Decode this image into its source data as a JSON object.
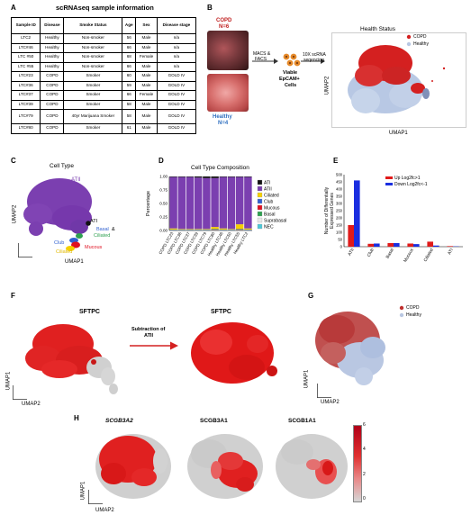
{
  "panels": {
    "a": "A",
    "b": "B",
    "c": "C",
    "d": "D",
    "e": "E",
    "f": "F",
    "g": "G",
    "h": "H"
  },
  "table_a": {
    "title": "scRNAseq sample information",
    "headers": [
      "Sample ID",
      "Disease",
      "Smoke Status",
      "Age",
      "Sex",
      "Disease stage"
    ],
    "rows": [
      [
        "LTC2",
        "Healthy",
        "Non-smoker",
        "56",
        "Male",
        "n/a"
      ],
      [
        "LTC#46",
        "Healthy",
        "Non-smoker",
        "66",
        "Male",
        "n/a"
      ],
      [
        "LTC #50",
        "Healthy",
        "Non-smoker",
        "68",
        "Female",
        "n/a"
      ],
      [
        "LTC #55",
        "Healthy",
        "Non-smoker",
        "66",
        "Male",
        "n/a"
      ],
      [
        "LTC#23",
        "COPD",
        "Smoker",
        "60",
        "Male",
        "GOLD IV"
      ],
      [
        "LTC#36",
        "COPD",
        "Smoker",
        "59",
        "Male",
        "GOLD IV"
      ],
      [
        "LTC#37",
        "COPD",
        "Smoker",
        "66",
        "Female",
        "GOLD IV"
      ],
      [
        "LTC#39",
        "COPD",
        "Smoker",
        "58",
        "Male",
        "GOLD IV"
      ],
      [
        "LTC#79",
        "COPD",
        "40yr Marijuana Smoker",
        "58",
        "Male",
        "GOLD IV"
      ],
      [
        "LTC#80",
        "COPD",
        "Smoker",
        "61",
        "Male",
        "GOLD IV"
      ]
    ]
  },
  "panel_b": {
    "copd": "COPD",
    "copd_n": "N=6",
    "healthy": "Healthy",
    "healthy_n": "N=4",
    "step1": "MACS &",
    "step1b": "FACS",
    "cells1": "Viable",
    "cells2": "EpCAM+",
    "cells3": "Cells",
    "step2": "10X scRNA",
    "step2b": "seqencing",
    "umap_title": "Health Status",
    "legend": [
      "COPD",
      "Healthy"
    ],
    "xlabel": "UMAP1",
    "ylabel": "UMAP2"
  },
  "panel_c": {
    "title": "Cell Type",
    "labels": [
      "ATII",
      "Basal &",
      "Mucous",
      "ATI",
      "Club",
      "Mucous",
      "Ciliated"
    ],
    "label_basal2": "Basal",
    "label_ampersand": "&",
    "label_ciliated_green": "Ciliated",
    "xlabel": "UMAP1",
    "ylabel": "UMAP2"
  },
  "panel_f": {
    "left_title": "SFTPC",
    "right_title": "SFTPC",
    "arrow1": "Subtraction of",
    "arrow2": "ATII",
    "xlabel": "UMAP2",
    "ylabel": "UMAP1"
  },
  "panel_g": {
    "legend": [
      "COPD",
      "Healthy"
    ],
    "xlabel": "UMAP2",
    "ylabel": "UMAP1"
  },
  "panel_h": {
    "titles": [
      "SCGB3A2",
      "SCGB3A1",
      "SCGB1A1"
    ],
    "xlabel": "UMAP2",
    "ylabel": "UMAP1",
    "scale_ticks": [
      "6",
      "4",
      "2",
      "0"
    ]
  },
  "colors": {
    "copd": "#d42020",
    "healthy": "#b8c8e4",
    "atii": "#7b3fb0",
    "ati": "#111111",
    "ciliated": "#f5d000",
    "club": "#3060d0",
    "mucous": "#e01020",
    "basal": "#2ea050",
    "suprabasal": "#e8e8e8",
    "nec": "#4cc8d8",
    "up": "#e01a1a",
    "down": "#1a2ee0"
  },
  "chart_data": [
    {
      "type": "bar",
      "stacked": true,
      "title": "Cell Type Composition",
      "ylabel": "Percentage",
      "xlabel": "",
      "ylim": [
        0,
        1
      ],
      "yticks": [
        "0.00",
        "0.25",
        "0.50",
        "0.75",
        "1.00"
      ],
      "categories": [
        "COPD LTC23",
        "COPD LTC36",
        "COPD LTC37",
        "COPD LTC39",
        "COPD LTC79",
        "COPD LTC80",
        "Healthy LTC46",
        "Healthy LTC50",
        "Healthy LTC55",
        "Healthy LTC2"
      ],
      "legend_placement": "right",
      "series": [
        {
          "name": "NEC",
          "color": "#4cc8d8",
          "values": [
            0.003,
            0.003,
            0.003,
            0.003,
            0.003,
            0.003,
            0.003,
            0.003,
            0.003,
            0.003
          ]
        },
        {
          "name": "Suprabasal",
          "color": "#e8e8e8",
          "values": [
            0.002,
            0.002,
            0.002,
            0.002,
            0.002,
            0.002,
            0.002,
            0.002,
            0.002,
            0.002
          ]
        },
        {
          "name": "Basal",
          "color": "#2ea050",
          "values": [
            0.005,
            0.005,
            0.005,
            0.005,
            0.005,
            0.005,
            0.005,
            0.005,
            0.005,
            0.005
          ]
        },
        {
          "name": "Mucous",
          "color": "#e01020",
          "values": [
            0.003,
            0.003,
            0.003,
            0.003,
            0.003,
            0.005,
            0.003,
            0.003,
            0.005,
            0.003
          ]
        },
        {
          "name": "Club",
          "color": "#3060d0",
          "values": [
            0.005,
            0.005,
            0.005,
            0.005,
            0.005,
            0.01,
            0.005,
            0.005,
            0.01,
            0.005
          ]
        },
        {
          "name": "Ciliated",
          "color": "#f5d000",
          "values": [
            0.02,
            0.01,
            0.01,
            0.01,
            0.01,
            0.04,
            0.02,
            0.01,
            0.09,
            0.02
          ]
        },
        {
          "name": "ATII",
          "color": "#7b3fb0",
          "values": [
            0.952,
            0.962,
            0.962,
            0.952,
            0.942,
            0.905,
            0.952,
            0.962,
            0.875,
            0.952
          ]
        },
        {
          "name": "ATI",
          "color": "#111111",
          "values": [
            0.01,
            0.01,
            0.01,
            0.02,
            0.03,
            0.03,
            0.01,
            0.01,
            0.01,
            0.01
          ]
        }
      ]
    },
    {
      "type": "bar",
      "title": "",
      "ylabel": "Number of Differentially Expressed Genes",
      "xlabel": "",
      "ylim": [
        0,
        500
      ],
      "yticks": [
        "0",
        "50",
        "100",
        "150",
        "200",
        "250",
        "300",
        "350",
        "400",
        "450",
        "500"
      ],
      "categories": [
        "ATII",
        "Club",
        "Basal",
        "Mucous",
        "Ciliated",
        "ATI"
      ],
      "legend_placement": "top-right",
      "series": [
        {
          "name": "Up Log2fc>1",
          "color": "#e01a1a",
          "values": [
            150,
            20,
            25,
            22,
            35,
            4
          ]
        },
        {
          "name": "Down Log2fc<-1",
          "color": "#1a2ee0",
          "values": [
            460,
            22,
            25,
            18,
            8,
            2
          ]
        }
      ]
    }
  ]
}
